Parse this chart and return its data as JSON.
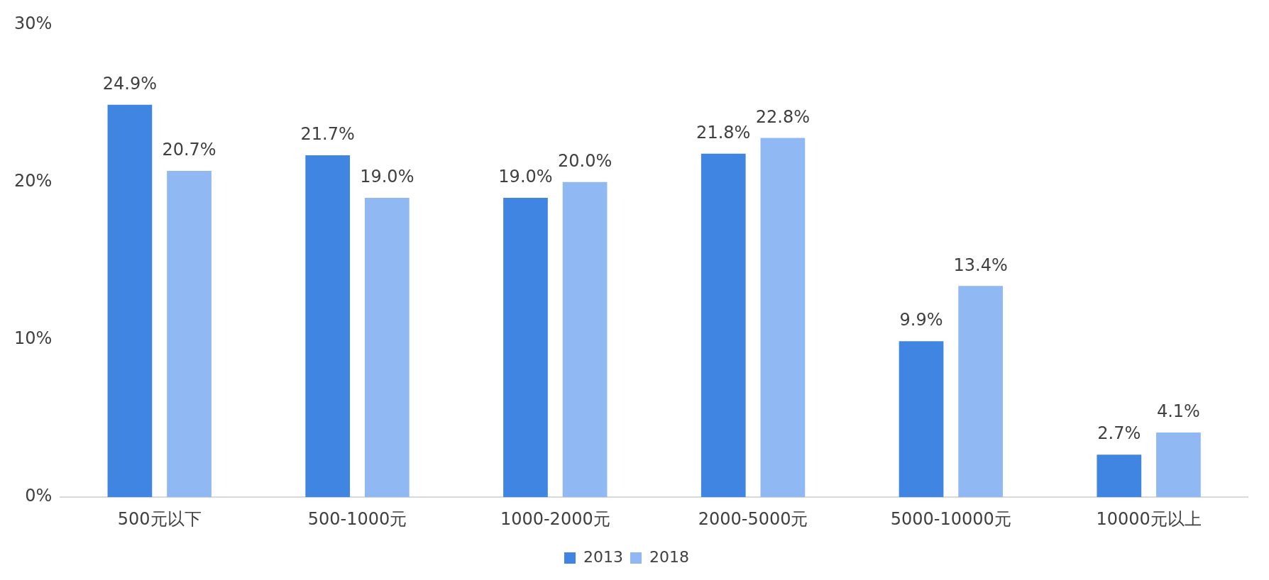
{
  "chart_data": {
    "type": "bar",
    "categories": [
      "500元以下",
      "500-1000元",
      "1000-2000元",
      "2000-5000元",
      "5000-10000元",
      "10000元以上"
    ],
    "series": [
      {
        "name": "2013",
        "color": "#4185e3",
        "values": [
          24.9,
          21.7,
          19.0,
          21.8,
          9.9,
          2.7
        ],
        "value_labels": [
          "24.9%",
          "21.7%",
          "19.0%",
          "21.8%",
          "9.9%",
          "2.7%"
        ]
      },
      {
        "name": "2018",
        "color": "#90b9f3",
        "values": [
          20.7,
          19.0,
          20.0,
          22.8,
          13.4,
          4.1
        ],
        "value_labels": [
          "20.7%",
          "19.0%",
          "20.0%",
          "22.8%",
          "13.4%",
          "4.1%"
        ]
      }
    ],
    "ylim": [
      0,
      30
    ],
    "yticks": [
      {
        "value": 0,
        "label": "0%"
      },
      {
        "value": 10,
        "label": "10%"
      },
      {
        "value": 20,
        "label": "20%"
      },
      {
        "value": 30,
        "label": "30%"
      }
    ],
    "grid": false,
    "legend": "bottom"
  }
}
